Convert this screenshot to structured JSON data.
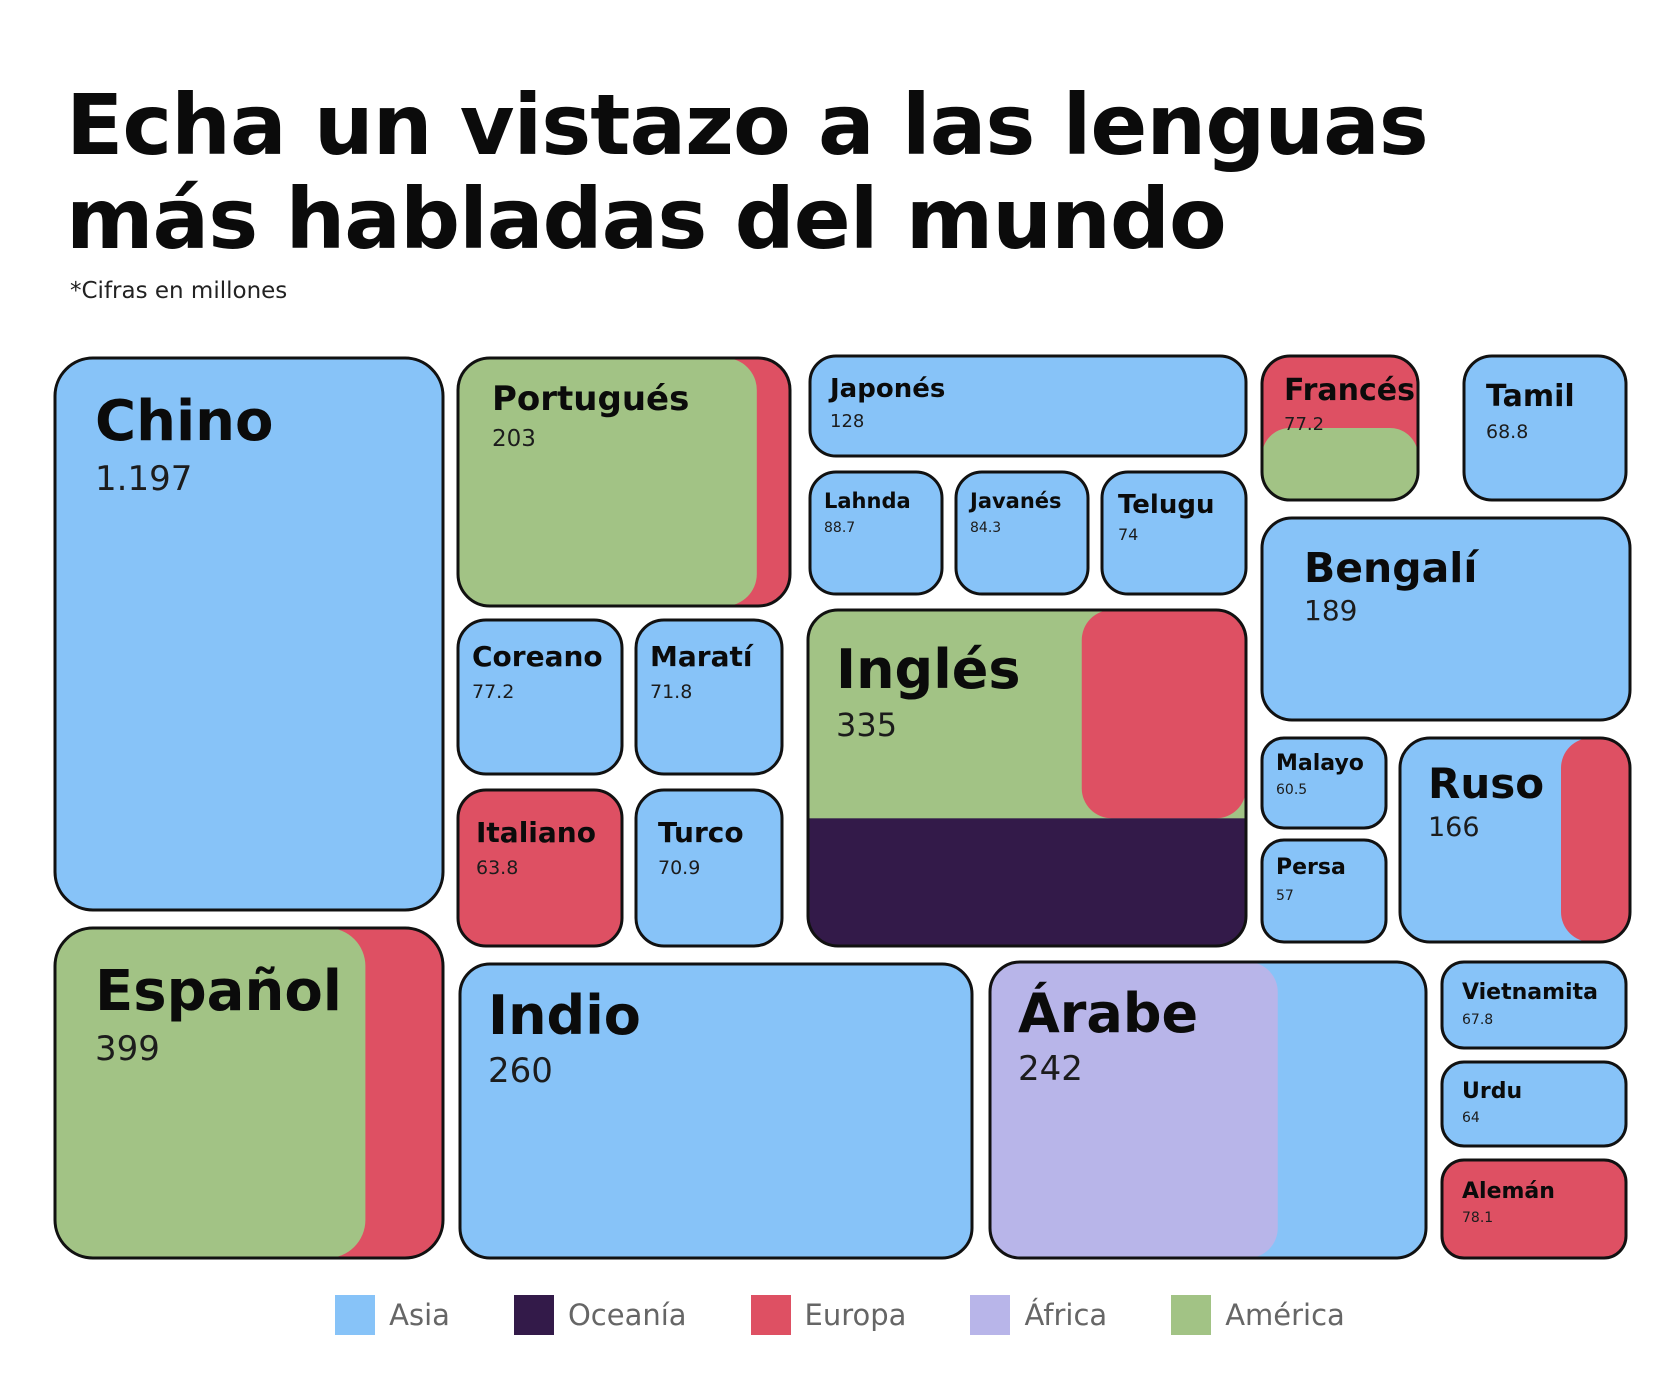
{
  "header": {
    "title_line1": "Echa un vistazo a las lenguas",
    "title_line2": "más habladas del mundo",
    "subtitle": "*Cifras en millones"
  },
  "colors": {
    "Asia": "#87c3f8",
    "Oceanía": "#331a49",
    "Europa": "#de5063",
    "África": "#b8b5e9",
    "América": "#a2c385"
  },
  "chart_data": {
    "type": "treemap",
    "title": "Echa un vistazo a las lenguas más habladas del mundo",
    "subtitle": "*Cifras en millones",
    "unit": "millones",
    "legend": {
      "position": "bottom",
      "entries": [
        "Asia",
        "Oceanía",
        "Europa",
        "África",
        "América"
      ]
    },
    "items": [
      {
        "name": "Chino",
        "value": 1197,
        "label": "1.197",
        "regions": [
          "Asia"
        ]
      },
      {
        "name": "Español",
        "value": 399,
        "label": "399",
        "regions": [
          "América",
          "Europa"
        ]
      },
      {
        "name": "Inglés",
        "value": 335,
        "label": "335",
        "regions": [
          "América",
          "Europa",
          "Oceanía"
        ]
      },
      {
        "name": "Indio",
        "value": 260,
        "label": "260",
        "regions": [
          "Asia"
        ]
      },
      {
        "name": "Árabe",
        "value": 242,
        "label": "242",
        "regions": [
          "África",
          "Asia"
        ]
      },
      {
        "name": "Portugués",
        "value": 203,
        "label": "203",
        "regions": [
          "América",
          "Europa"
        ]
      },
      {
        "name": "Bengalí",
        "value": 189,
        "label": "189",
        "regions": [
          "Asia"
        ]
      },
      {
        "name": "Ruso",
        "value": 166,
        "label": "166",
        "regions": [
          "Asia",
          "Europa"
        ]
      },
      {
        "name": "Japonés",
        "value": 128,
        "label": "128",
        "regions": [
          "Asia"
        ]
      },
      {
        "name": "Lahnda",
        "value": 88.7,
        "label": "88.7",
        "regions": [
          "Asia"
        ]
      },
      {
        "name": "Javanés",
        "value": 84.3,
        "label": "84.3",
        "regions": [
          "Asia"
        ]
      },
      {
        "name": "Alemán",
        "value": 78.1,
        "label": "78.1",
        "regions": [
          "Europa"
        ]
      },
      {
        "name": "Coreano",
        "value": 77.2,
        "label": "77.2",
        "regions": [
          "Asia"
        ]
      },
      {
        "name": "Francés",
        "value": 77.2,
        "label": "77.2",
        "regions": [
          "Europa",
          "América"
        ]
      },
      {
        "name": "Telugu",
        "value": 74,
        "label": "74",
        "regions": [
          "Asia"
        ]
      },
      {
        "name": "Maratí",
        "value": 71.8,
        "label": "71.8",
        "regions": [
          "Asia"
        ]
      },
      {
        "name": "Turco",
        "value": 70.9,
        "label": "70.9",
        "regions": [
          "Asia"
        ]
      },
      {
        "name": "Tamil",
        "value": 68.8,
        "label": "68.8",
        "regions": [
          "Asia"
        ]
      },
      {
        "name": "Vietnamita",
        "value": 67.8,
        "label": "67.8",
        "regions": [
          "Asia"
        ]
      },
      {
        "name": "Urdu",
        "value": 64,
        "label": "64",
        "regions": [
          "Asia"
        ]
      },
      {
        "name": "Italiano",
        "value": 63.8,
        "label": "63.8",
        "regions": [
          "Europa"
        ]
      },
      {
        "name": "Malayo",
        "value": 60.5,
        "label": "60.5",
        "regions": [
          "Asia"
        ]
      },
      {
        "name": "Persa",
        "value": 57,
        "label": "57",
        "regions": [
          "Asia"
        ]
      }
    ]
  }
}
